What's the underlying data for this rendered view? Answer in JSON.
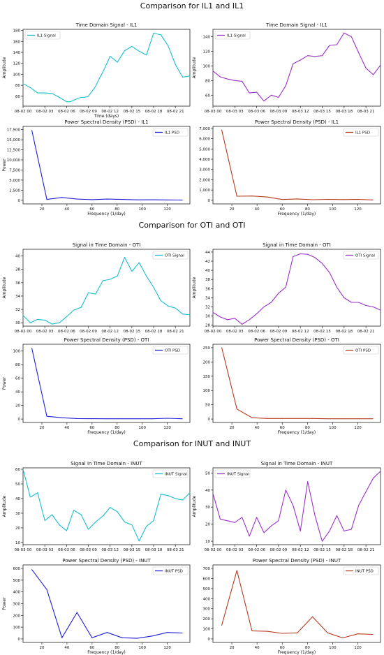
{
  "sections": [
    {
      "title": "Comparison for IL1 and IL1"
    },
    {
      "title": "Comparison for OTI and OTI"
    },
    {
      "title": "Comparison for INUT and INUT"
    }
  ],
  "chart_data": [
    {
      "type": "line",
      "title": "Time Domain Signal - IL1",
      "xlabel": "Time (days)",
      "ylabel": "Amplitude",
      "xticks": [
        "08-02 00",
        "08-02 03",
        "08-02 06",
        "08-02 09",
        "08-02 12",
        "08-02 15",
        "08-02 18",
        "08-02 21"
      ],
      "xlim": [
        0,
        23
      ],
      "ylim": [
        42,
        182
      ],
      "yticks": [
        60,
        80,
        100,
        120,
        140,
        160,
        180
      ],
      "legend": "top-left",
      "color": "#17becf",
      "series": [
        {
          "name": "IL1 Signal",
          "x": [
            0,
            1,
            2,
            3,
            4,
            5,
            6,
            6.5,
            7,
            8,
            8.5,
            9,
            10,
            10.5,
            11,
            12,
            13,
            14,
            15,
            16,
            17,
            18,
            19,
            20,
            21,
            22,
            23
          ],
          "values": [
            83,
            76,
            66,
            66,
            65,
            58,
            50,
            50,
            53,
            58,
            58,
            60,
            78,
            92,
            104,
            133,
            122,
            143,
            151,
            142,
            135,
            175,
            172,
            152,
            118,
            95,
            97
          ]
        }
      ]
    },
    {
      "type": "line",
      "title": "Time Domain Signal - IL1",
      "xlabel": "",
      "ylabel": "Amplitude",
      "xticks": [
        "08-03 00",
        "08-03 03",
        "08-03 06",
        "08-03 09",
        "08-03 12",
        "08-03 15",
        "08-03 18",
        "08-03 21"
      ],
      "xlim": [
        0,
        23
      ],
      "ylim": [
        45,
        150
      ],
      "yticks": [
        60,
        80,
        100,
        120,
        140
      ],
      "legend": "top-left",
      "color": "#9b30c8",
      "series": [
        {
          "name": "IL1 Signal",
          "x": [
            0,
            1,
            2,
            3,
            4,
            5,
            6,
            7,
            8,
            9,
            10,
            11,
            12,
            13,
            14,
            15,
            16,
            17,
            18,
            19,
            20,
            21,
            22,
            23
          ],
          "values": [
            93,
            85,
            82,
            80,
            79,
            63,
            64,
            52,
            60,
            57,
            73,
            103,
            108,
            114,
            113,
            114,
            128,
            129,
            145,
            140,
            118,
            97,
            88,
            101
          ]
        }
      ]
    },
    {
      "type": "line",
      "title": "Power Spectral Density (PSD) - IL1",
      "xlabel": "Frequency (1/day)",
      "ylabel": "Power",
      "xticks": [
        20,
        40,
        60,
        80,
        100,
        120
      ],
      "xlim": [
        5,
        138
      ],
      "ylim": [
        -900,
        18300
      ],
      "yticks": [
        0,
        2500,
        5000,
        7500,
        10000,
        12500,
        15000,
        17500
      ],
      "ytick_labels": [
        "0",
        "2,500",
        "5,000",
        "7,500",
        "10,000",
        "12,500",
        "15,000",
        "17,500"
      ],
      "legend": "top-right",
      "color": "#1f1fd6",
      "series": [
        {
          "name": "IL1 PSD",
          "x": [
            12,
            24,
            36,
            48,
            60,
            72,
            84,
            96,
            108,
            120,
            132
          ],
          "values": [
            17300,
            200,
            700,
            300,
            150,
            300,
            200,
            100,
            120,
            80,
            60
          ]
        }
      ]
    },
    {
      "type": "line",
      "title": "Power Spectral Density (PSD) - IL1",
      "xlabel": "Frequency (1/day)",
      "ylabel": "",
      "xticks": [
        20,
        40,
        60,
        80,
        100,
        120
      ],
      "xlim": [
        5,
        138
      ],
      "ylim": [
        -350,
        7200
      ],
      "yticks": [
        0,
        1000,
        2000,
        3000,
        4000,
        5000,
        6000,
        7000
      ],
      "ytick_labels": [
        "0",
        "1,000",
        "2,000",
        "3,000",
        "4,000",
        "5,000",
        "6,000",
        "7,000"
      ],
      "legend": "top-right",
      "color": "#b5391d",
      "series": [
        {
          "name": "IL1 PSD",
          "x": [
            12,
            24,
            36,
            48,
            60,
            72,
            84,
            96,
            108,
            120,
            132
          ],
          "values": [
            6850,
            400,
            420,
            320,
            80,
            130,
            60,
            90,
            70,
            90,
            40
          ]
        }
      ]
    },
    {
      "type": "line",
      "title": "Signal in Time Domain - OTI",
      "xlabel": "",
      "ylabel": "Amplitude",
      "xticks": [
        "08-02 00",
        "08-02 03",
        "08-02 06",
        "08-02 09",
        "08-02 12",
        "08-02 15",
        "08-02 18",
        "08-02 21"
      ],
      "xlim": [
        0,
        23
      ],
      "ylim": [
        29.5,
        41
      ],
      "yticks": [
        30,
        32,
        34,
        36,
        38,
        40
      ],
      "legend": "top-right",
      "color": "#17becf",
      "series": [
        {
          "name": "OTI Signal",
          "x": [
            0,
            1,
            2,
            3,
            4,
            5,
            6,
            7,
            8,
            9,
            10,
            11,
            12,
            13,
            14,
            15,
            16,
            17,
            18,
            19,
            20,
            21,
            22,
            23
          ],
          "values": [
            31.1,
            30.0,
            30.5,
            30.4,
            29.8,
            30.0,
            30.9,
            31.9,
            32.3,
            34.5,
            34.3,
            36.3,
            36.5,
            37.0,
            39.8,
            37.7,
            39.0,
            37.0,
            35.3,
            33.3,
            32.5,
            32.2,
            31.3,
            31.2
          ]
        }
      ]
    },
    {
      "type": "line",
      "title": "Signal in Time Domain - OTI",
      "xlabel": "",
      "ylabel": "Amplitude",
      "xticks": [
        "08-02 00",
        "08-02 03",
        "08-02 06",
        "08-02 09",
        "08-02 12",
        "08-02 15",
        "08-02 18",
        "08-02 21"
      ],
      "xlim": [
        0,
        23
      ],
      "ylim": [
        27.8,
        44.6
      ],
      "yticks": [
        28,
        30,
        32,
        34,
        36,
        38,
        40,
        42,
        44
      ],
      "legend": "top-right",
      "color": "#9b30c8",
      "series": [
        {
          "name": "OTI Signal",
          "x": [
            0,
            1,
            2,
            3,
            4,
            5,
            6,
            7,
            8,
            9,
            10,
            11,
            12,
            13,
            14,
            15,
            16,
            17,
            18,
            19,
            20,
            21,
            22,
            23
          ],
          "values": [
            30.8,
            29.8,
            29.2,
            29.5,
            28.2,
            29.2,
            30.5,
            32.0,
            33.0,
            35.0,
            36.3,
            43.0,
            43.6,
            43.5,
            42.8,
            41.5,
            39.5,
            36.3,
            34.0,
            33.0,
            33.0,
            32.3,
            32.0,
            31.3
          ]
        }
      ]
    },
    {
      "type": "line",
      "title": "Power Spectral Density (PSD) - OTI",
      "xlabel": "Frequency (1/day)",
      "ylabel": "Power",
      "xticks": [
        20,
        40,
        60,
        80,
        100,
        120
      ],
      "xlim": [
        5,
        138
      ],
      "ylim": [
        -5,
        110
      ],
      "yticks": [
        0,
        20,
        40,
        60,
        80,
        100
      ],
      "ytick_labels": [
        "0",
        "20",
        "40",
        "60",
        "80",
        "100"
      ],
      "legend": "top-right",
      "color": "#1f1fd6",
      "series": [
        {
          "name": "OTI PSD",
          "x": [
            12,
            24,
            36,
            48,
            60,
            72,
            84,
            96,
            108,
            120,
            132
          ],
          "values": [
            104,
            4,
            2,
            0.8,
            0.5,
            0.4,
            0.4,
            0.4,
            0.4,
            1.2,
            0.4
          ]
        }
      ]
    },
    {
      "type": "line",
      "title": "Power Spectral Density (PSD) - OTI",
      "xlabel": "Frequency (1/day)",
      "ylabel": "",
      "xticks": [
        20,
        40,
        60,
        80,
        100,
        120
      ],
      "xlim": [
        5,
        138
      ],
      "ylim": [
        -12,
        262
      ],
      "yticks": [
        0,
        50,
        100,
        150,
        200,
        250
      ],
      "ytick_labels": [
        "0",
        "50",
        "100",
        "150",
        "200",
        "250"
      ],
      "legend": "top-right",
      "color": "#b5391d",
      "series": [
        {
          "name": "OTI PSD",
          "x": [
            12,
            24,
            36,
            48,
            60,
            72,
            84,
            96,
            108,
            120,
            132
          ],
          "values": [
            250,
            35,
            5,
            2,
            2,
            2,
            2,
            1,
            1,
            1,
            1
          ]
        }
      ]
    },
    {
      "type": "line",
      "title": "Signal in Time Domain - INUT",
      "xlabel": "",
      "ylabel": "Amplitude",
      "xticks": [
        "08-03 00",
        "08-03 03",
        "08-03 06",
        "08-03 09",
        "08-03 12",
        "08-03 15",
        "08-03 18",
        "08-03 21"
      ],
      "xlim": [
        0,
        23
      ],
      "ylim": [
        8.5,
        61
      ],
      "yticks": [
        10,
        20,
        30,
        40,
        50,
        60
      ],
      "legend": "top-right",
      "color": "#17becf",
      "series": [
        {
          "name": "INUT Signal",
          "x": [
            0,
            1,
            2,
            3,
            4,
            5,
            6,
            7,
            8,
            9,
            10,
            11,
            12,
            13,
            14,
            15,
            16,
            17,
            18,
            19,
            20,
            21,
            22,
            23
          ],
          "values": [
            60,
            41,
            44,
            25,
            29,
            22,
            18,
            32,
            29,
            19,
            24,
            28,
            34,
            31,
            24,
            22,
            11,
            21,
            25,
            43,
            42,
            40,
            39,
            44
          ]
        }
      ]
    },
    {
      "type": "line",
      "title": "Signal in Time Domain - INUT",
      "xlabel": "",
      "ylabel": "Amplitude",
      "xticks": [
        "08-02 00",
        "08-02 03",
        "08-02 06",
        "08-02 09",
        "08-02 12",
        "08-02 15",
        "08-02 18",
        "08-02 21"
      ],
      "xlim": [
        0,
        23
      ],
      "ylim": [
        8,
        53
      ],
      "yticks": [
        10,
        20,
        30,
        40,
        50
      ],
      "legend": "top-left",
      "color": "#9b30c8",
      "series": [
        {
          "name": "INUT Signal",
          "x": [
            0,
            1,
            2,
            3,
            4,
            5,
            6,
            7,
            8,
            9,
            10,
            11,
            12,
            13,
            14,
            15,
            16,
            17,
            18,
            19,
            20,
            21,
            22,
            23
          ],
          "values": [
            38,
            23,
            22,
            21,
            24,
            13,
            24,
            15,
            19,
            22,
            40,
            31,
            16,
            45,
            25,
            10,
            16,
            25,
            16,
            17,
            31,
            39,
            47,
            51
          ]
        }
      ]
    },
    {
      "type": "line",
      "title": "Power Spectral Density (PSD) - INUT",
      "xlabel": "Frequency (1/day)",
      "ylabel": "Power",
      "xticks": [
        20,
        40,
        60,
        80,
        100,
        120
      ],
      "xlim": [
        5,
        138
      ],
      "ylim": [
        -30,
        630
      ],
      "yticks": [
        0,
        100,
        200,
        300,
        400,
        500,
        600
      ],
      "ytick_labels": [
        "0",
        "100",
        "200",
        "300",
        "400",
        "500",
        "600"
      ],
      "legend": "top-right",
      "color": "#1f1fd6",
      "series": [
        {
          "name": "INUT PSD",
          "x": [
            12,
            24,
            36,
            48,
            60,
            72,
            84,
            96,
            108,
            120,
            132
          ],
          "values": [
            590,
            420,
            10,
            225,
            10,
            55,
            10,
            5,
            25,
            55,
            50
          ]
        }
      ]
    },
    {
      "type": "line",
      "title": "Power Spectral Density (PSD) - INUT",
      "xlabel": "Frequency (1/day)",
      "ylabel": "",
      "xticks": [
        20,
        40,
        60,
        80,
        100,
        120
      ],
      "xlim": [
        5,
        138
      ],
      "ylim": [
        -35,
        735
      ],
      "yticks": [
        0,
        100,
        200,
        300,
        400,
        500,
        600,
        700
      ],
      "ytick_labels": [
        "0",
        "100",
        "200",
        "300",
        "400",
        "500",
        "600",
        "700"
      ],
      "legend": "top-right",
      "color": "#b5391d",
      "series": [
        {
          "name": "INUT PSD",
          "x": [
            12,
            24,
            36,
            48,
            60,
            72,
            84,
            96,
            108,
            120,
            132
          ],
          "values": [
            135,
            680,
            80,
            75,
            55,
            60,
            220,
            60,
            10,
            50,
            45
          ]
        }
      ]
    }
  ]
}
